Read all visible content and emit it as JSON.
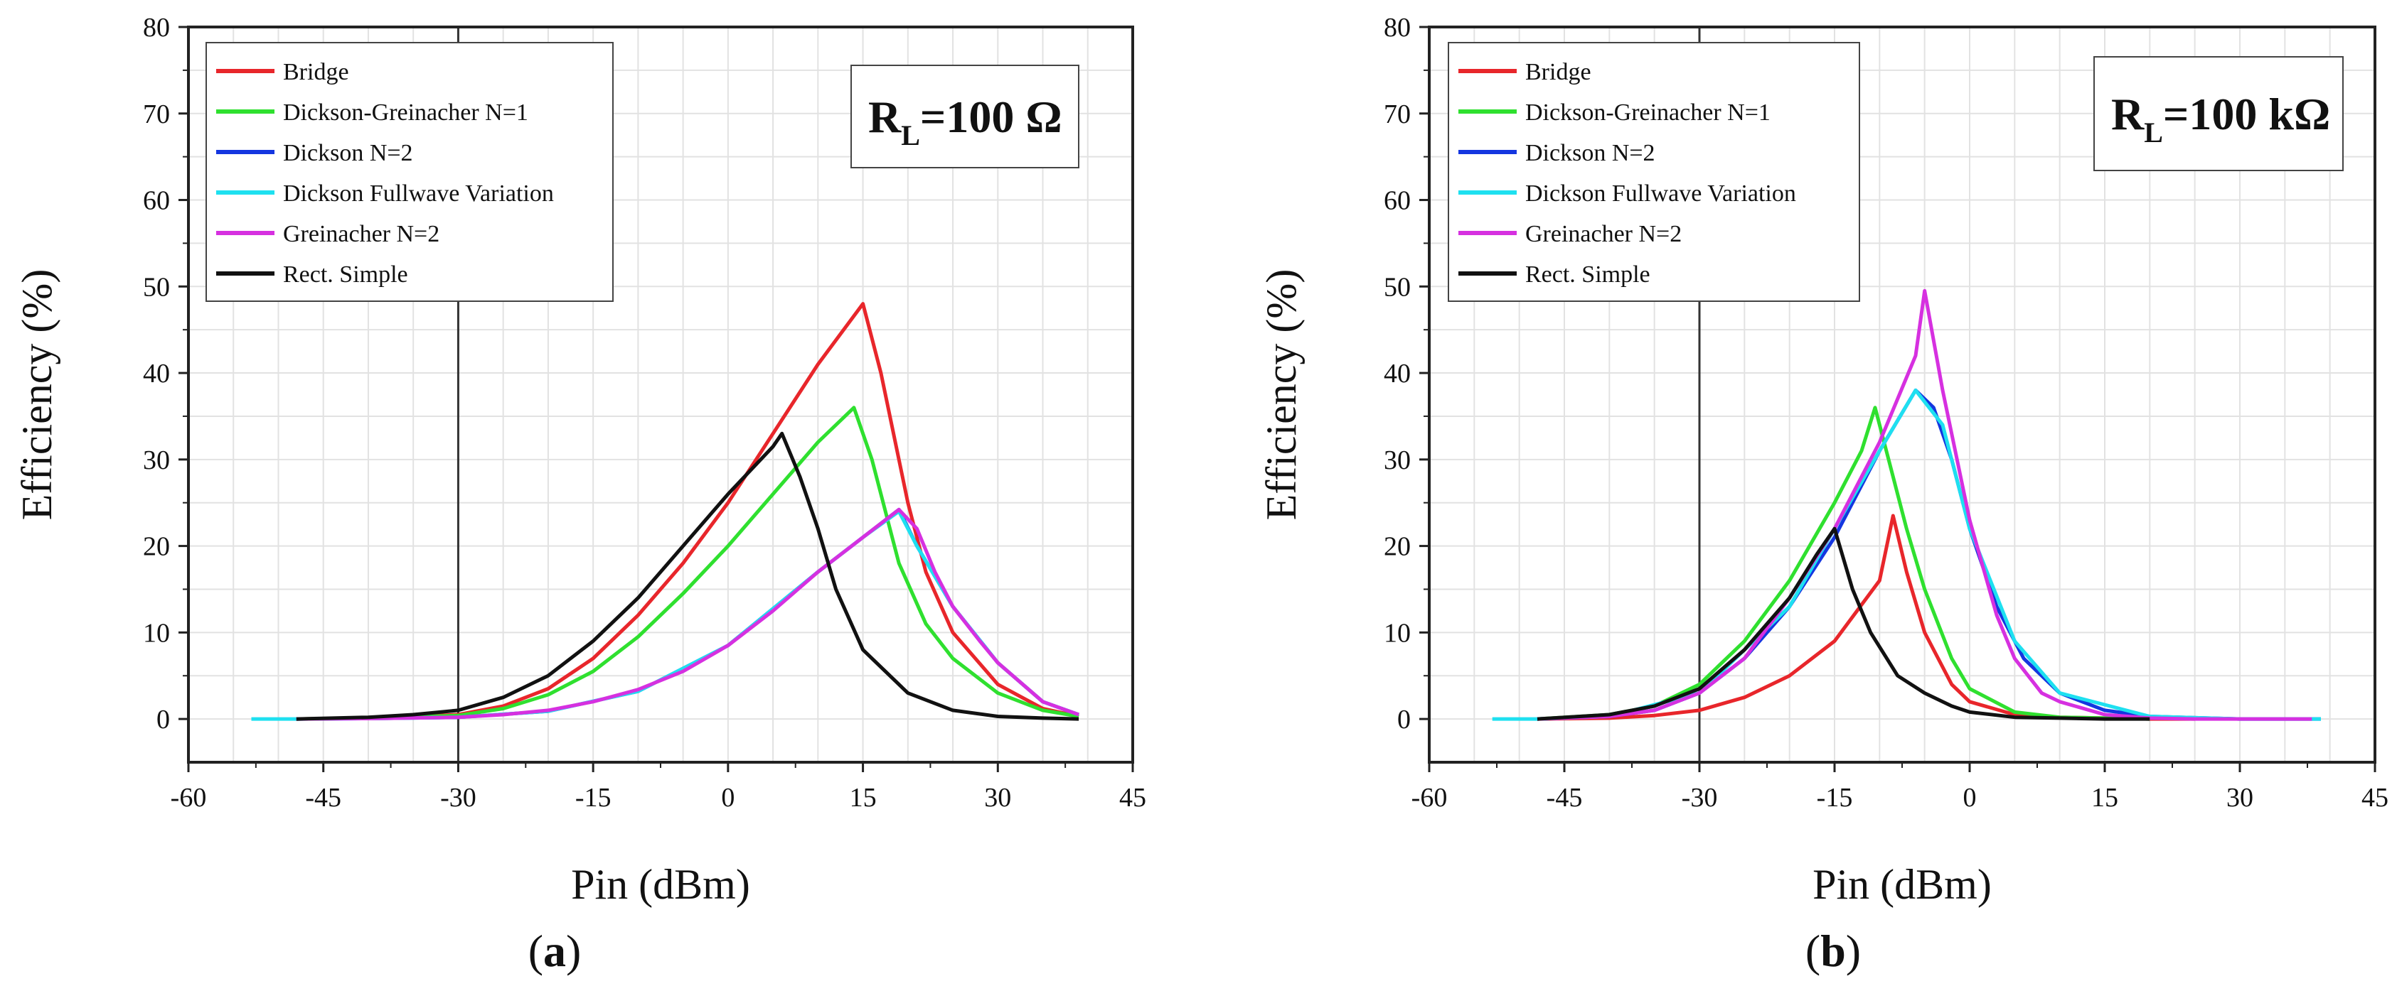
{
  "chart_data": [
    {
      "type": "line",
      "panel_label": "a",
      "title": "",
      "annotation": {
        "main": "R",
        "sub": "L",
        "value": "=100 Ω"
      },
      "xlabel": "Pin (dBm)",
      "ylabel": "Efficiency (%)",
      "xlim": [
        -60,
        45
      ],
      "ylim": [
        -5,
        80
      ],
      "xticks": [
        -60,
        -45,
        -30,
        -15,
        0,
        15,
        30,
        45
      ],
      "yticks": [
        0,
        10,
        20,
        30,
        40,
        50,
        60,
        70,
        80
      ],
      "grid": true,
      "legend_position": "top-left",
      "vline_x": -30,
      "series": [
        {
          "name": "Bridge",
          "color": "#e8262b",
          "x": [
            -48,
            -40,
            -30,
            -25,
            -20,
            -15,
            -10,
            -5,
            0,
            5,
            10,
            15,
            17,
            20,
            22,
            25,
            30,
            35,
            39
          ],
          "y": [
            0,
            0.1,
            0.5,
            1.5,
            3.5,
            7,
            12,
            18,
            25,
            33,
            41,
            48,
            40,
            25,
            17,
            10,
            4,
            1.2,
            0.3
          ]
        },
        {
          "name": "Dickson-Greinacher N=1",
          "color": "#2fe02f",
          "x": [
            -48,
            -40,
            -30,
            -25,
            -20,
            -15,
            -10,
            -5,
            0,
            5,
            10,
            14,
            16,
            19,
            22,
            25,
            30,
            35,
            39
          ],
          "y": [
            0,
            0.1,
            0.4,
            1.2,
            2.8,
            5.5,
            9.5,
            14.5,
            20,
            26,
            32,
            36,
            30,
            18,
            11,
            7,
            3,
            1,
            0.3
          ]
        },
        {
          "name": "Dickson N=2",
          "color": "#1436e0",
          "x": [
            -48,
            -40,
            -30,
            -20,
            -10,
            0,
            10,
            15,
            19,
            21,
            25,
            30,
            35,
            39
          ],
          "y": [
            0,
            0.05,
            0.2,
            0.9,
            3.2,
            8.5,
            17,
            21,
            24.2,
            20,
            13,
            6.5,
            2,
            0.5
          ]
        },
        {
          "name": "Dickson Fullwave Variation",
          "color": "#1ee0f0",
          "x": [
            -53,
            -48,
            -40,
            -30,
            -20,
            -10,
            0,
            10,
            15,
            19,
            21,
            25,
            30,
            35,
            39
          ],
          "y": [
            0,
            0,
            0.05,
            0.2,
            0.9,
            3.2,
            8.5,
            17,
            21,
            24,
            20,
            13,
            6.5,
            2,
            0.5
          ]
        },
        {
          "name": "Greinacher N=2",
          "color": "#d630e0",
          "x": [
            -48,
            -40,
            -30,
            -25,
            -20,
            -15,
            -10,
            -5,
            0,
            5,
            10,
            15,
            19,
            21,
            23,
            25,
            28,
            30,
            35,
            39
          ],
          "y": [
            0,
            0.05,
            0.2,
            0.5,
            1,
            2,
            3.4,
            5.5,
            8.5,
            12.5,
            17,
            21,
            24.2,
            22,
            17,
            13,
            9,
            6.5,
            2,
            0.5
          ]
        },
        {
          "name": "Rect. Simple",
          "color": "#111111",
          "x": [
            -48,
            -40,
            -35,
            -30,
            -25,
            -20,
            -15,
            -10,
            -5,
            0,
            5,
            6,
            8,
            10,
            12,
            15,
            20,
            25,
            30,
            35,
            39
          ],
          "y": [
            0,
            0.2,
            0.5,
            1,
            2.5,
            5,
            9,
            14,
            20,
            26,
            31.5,
            33,
            28,
            22,
            15,
            8,
            3,
            1,
            0.3,
            0.1,
            0
          ]
        }
      ]
    },
    {
      "type": "line",
      "panel_label": "b",
      "title": "",
      "annotation": {
        "main": "R",
        "sub": "L",
        "value": "=100 kΩ"
      },
      "xlabel": "Pin (dBm)",
      "ylabel": "Efficiency (%)",
      "xlim": [
        -60,
        45
      ],
      "ylim": [
        -5,
        80
      ],
      "xticks": [
        -60,
        -45,
        -30,
        -15,
        0,
        15,
        30,
        45
      ],
      "yticks": [
        0,
        10,
        20,
        30,
        40,
        50,
        60,
        70,
        80
      ],
      "grid": true,
      "legend_position": "top-left",
      "vline_x": -30,
      "series": [
        {
          "name": "Bridge",
          "color": "#e8262b",
          "x": [
            -48,
            -40,
            -35,
            -30,
            -25,
            -20,
            -15,
            -10,
            -8.5,
            -7,
            -5,
            -2,
            0,
            5,
            10,
            15,
            20,
            25
          ],
          "y": [
            0,
            0.1,
            0.4,
            1,
            2.5,
            5,
            9,
            16,
            23.5,
            17,
            10,
            4,
            2,
            0.5,
            0.2,
            0.1,
            0,
            0
          ]
        },
        {
          "name": "Dickson-Greinacher N=1",
          "color": "#2fe02f",
          "x": [
            -48,
            -40,
            -35,
            -30,
            -25,
            -20,
            -15,
            -12,
            -10.5,
            -9,
            -7,
            -5,
            -2,
            0,
            5,
            10,
            15,
            20
          ],
          "y": [
            0,
            0.5,
            1.5,
            4,
            9,
            16,
            25,
            31,
            36,
            30,
            22,
            15,
            7,
            3.5,
            0.8,
            0.2,
            0.1,
            0
          ]
        },
        {
          "name": "Dickson N=2",
          "color": "#1436e0",
          "x": [
            -48,
            -40,
            -35,
            -30,
            -25,
            -20,
            -15,
            -10,
            -6,
            -4,
            -2,
            0,
            3,
            6,
            10,
            15,
            20,
            30,
            39
          ],
          "y": [
            0,
            0.3,
            1,
            3,
            7,
            13,
            21,
            31,
            38,
            36,
            30,
            22,
            13,
            7,
            3,
            1,
            0.3,
            0,
            0
          ]
        },
        {
          "name": "Dickson Fullwave Variation",
          "color": "#1ee0f0",
          "x": [
            -53,
            -48,
            -40,
            -30,
            -20,
            -10,
            -6,
            -3,
            0,
            5,
            10,
            20,
            30,
            39
          ],
          "y": [
            0,
            0,
            0.3,
            3,
            13,
            31,
            38,
            34,
            22,
            9,
            3,
            0.3,
            0,
            0
          ]
        },
        {
          "name": "Greinacher N=2",
          "color": "#d630e0",
          "x": [
            -48,
            -40,
            -35,
            -30,
            -25,
            -20,
            -15,
            -10,
            -6,
            -5,
            -3,
            0,
            3,
            5,
            8,
            10,
            15,
            20,
            25,
            30,
            38
          ],
          "y": [
            0,
            0.3,
            1,
            3,
            7,
            14,
            22,
            32,
            42,
            49.5,
            38,
            23,
            12,
            7,
            3,
            2,
            0.5,
            0.1,
            0,
            0,
            0
          ]
        },
        {
          "name": "Rect. Simple",
          "color": "#111111",
          "x": [
            -48,
            -40,
            -35,
            -30,
            -25,
            -20,
            -17,
            -15,
            -13,
            -11,
            -8,
            -5,
            -2,
            0,
            5,
            10,
            15,
            20
          ],
          "y": [
            0,
            0.5,
            1.5,
            3.5,
            8,
            14,
            19,
            22,
            15,
            10,
            5,
            3,
            1.5,
            0.8,
            0.2,
            0.1,
            0,
            0
          ]
        }
      ]
    }
  ]
}
